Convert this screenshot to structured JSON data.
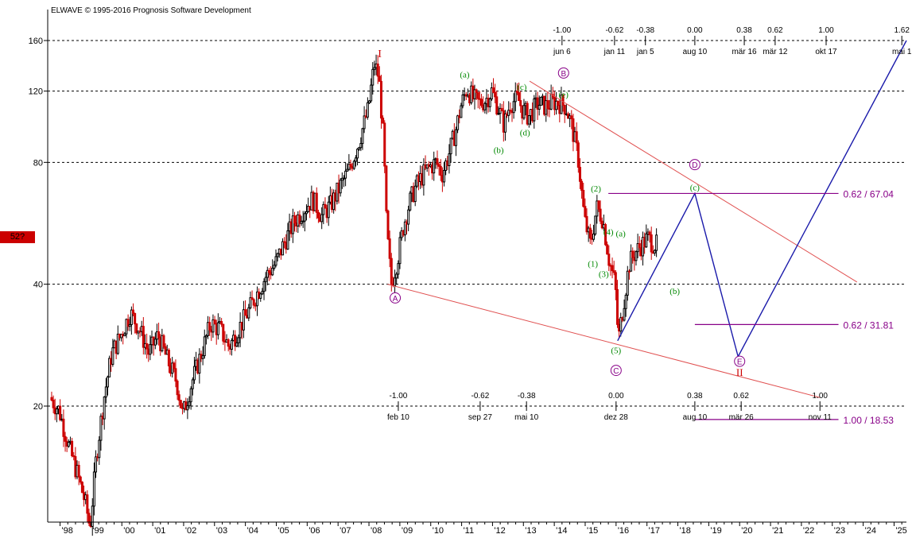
{
  "copyright": "ELWAVE © 1995-2016 Prognosis Software Development",
  "price_tag": "52?",
  "colors": {
    "bull": "#000000",
    "bear": "#cc0000",
    "projection": "#1a1aaa",
    "channel": "#e05050",
    "target": "#880088",
    "wave_green": "#008800",
    "wave_purple": "#880088",
    "wave_red": "#cc0000"
  },
  "chart_data": {
    "type": "candlestick",
    "y_scale": "log",
    "ylim": [
      8,
      175
    ],
    "xlim": [
      1997.6,
      2025.4
    ],
    "y_ticks": [
      20,
      40,
      80,
      120,
      160
    ],
    "x_ticks": [
      "'98",
      "'99",
      "'00",
      "'01",
      "'02",
      "'03",
      "'04",
      "'05",
      "'06",
      "'07",
      "'08",
      "'09",
      "'10",
      "'11",
      "'12",
      "'13",
      "'14",
      "'15",
      "'16",
      "'17",
      "'18",
      "'19",
      "'20",
      "'21",
      "'22",
      "'23",
      "'24",
      "'25"
    ],
    "x_tick_years": [
      1998,
      1999,
      2000,
      2001,
      2002,
      2003,
      2004,
      2005,
      2006,
      2007,
      2008,
      2009,
      2010,
      2011,
      2012,
      2013,
      2014,
      2015,
      2016,
      2017,
      2018,
      2019,
      2020,
      2021,
      2022,
      2023,
      2024,
      2025
    ],
    "anchors": [
      [
        1997.7,
        21
      ],
      [
        1998.0,
        19.5
      ],
      [
        1998.3,
        16
      ],
      [
        1998.6,
        13.5
      ],
      [
        1998.85,
        11.5
      ],
      [
        1999.0,
        10
      ],
      [
        1999.2,
        15
      ],
      [
        1999.45,
        21
      ],
      [
        1999.7,
        27
      ],
      [
        2000.0,
        30
      ],
      [
        2000.3,
        34
      ],
      [
        2000.6,
        31
      ],
      [
        2000.9,
        27
      ],
      [
        2001.2,
        30
      ],
      [
        2001.5,
        26
      ],
      [
        2001.8,
        23
      ],
      [
        2002.0,
        19
      ],
      [
        2002.3,
        23
      ],
      [
        2002.6,
        27
      ],
      [
        2002.9,
        32
      ],
      [
        2003.2,
        31
      ],
      [
        2003.5,
        28
      ],
      [
        2003.8,
        31
      ],
      [
        2004.1,
        34
      ],
      [
        2004.4,
        38
      ],
      [
        2004.7,
        42
      ],
      [
        2005.0,
        45
      ],
      [
        2005.3,
        51
      ],
      [
        2005.6,
        57
      ],
      [
        2005.9,
        61
      ],
      [
        2006.2,
        65
      ],
      [
        2006.5,
        59
      ],
      [
        2006.8,
        63
      ],
      [
        2007.1,
        70
      ],
      [
        2007.4,
        77
      ],
      [
        2007.7,
        90
      ],
      [
        2008.0,
        108
      ],
      [
        2008.2,
        140
      ],
      [
        2008.35,
        130
      ],
      [
        2008.5,
        90
      ],
      [
        2008.6,
        55
      ],
      [
        2008.75,
        40
      ],
      [
        2008.95,
        46
      ],
      [
        2009.15,
        56
      ],
      [
        2009.35,
        64
      ],
      [
        2009.55,
        70
      ],
      [
        2009.8,
        75
      ],
      [
        2010.0,
        78
      ],
      [
        2010.2,
        80
      ],
      [
        2010.4,
        75
      ],
      [
        2010.6,
        83
      ],
      [
        2010.85,
        97
      ],
      [
        2011.0,
        110
      ],
      [
        2011.2,
        122
      ],
      [
        2011.4,
        115
      ],
      [
        2011.6,
        112
      ],
      [
        2011.8,
        114
      ],
      [
        2012.0,
        120
      ],
      [
        2012.2,
        110
      ],
      [
        2012.4,
        99
      ],
      [
        2012.6,
        112
      ],
      [
        2012.85,
        115
      ],
      [
        2013.0,
        108
      ],
      [
        2013.2,
        104
      ],
      [
        2013.5,
        112
      ],
      [
        2013.75,
        110
      ],
      [
        2014.0,
        113
      ],
      [
        2014.25,
        112
      ],
      [
        2014.4,
        110
      ],
      [
        2014.6,
        98
      ],
      [
        2014.8,
        82
      ],
      [
        2015.0,
        58
      ],
      [
        2015.2,
        50
      ],
      [
        2015.4,
        62
      ],
      [
        2015.6,
        58
      ],
      [
        2015.8,
        46
      ],
      [
        2016.0,
        40
      ],
      [
        2016.1,
        29
      ],
      [
        2016.25,
        35
      ],
      [
        2016.45,
        45
      ],
      [
        2016.65,
        48
      ],
      [
        2016.85,
        50
      ],
      [
        2017.05,
        52
      ],
      [
        2017.3,
        50
      ]
    ],
    "wave_labels": [
      {
        "text": "I",
        "x": 2008.35,
        "y": 148,
        "color": "wave_red",
        "circle": false,
        "size": 14
      },
      {
        "text": "A",
        "x": 2008.85,
        "y": 37,
        "color": "wave_purple",
        "circle": true
      },
      {
        "text": "(a)",
        "x": 2011.1,
        "y": 132,
        "color": "wave_green",
        "circle": false
      },
      {
        "text": "(b)",
        "x": 2012.2,
        "y": 86,
        "color": "wave_green",
        "circle": false
      },
      {
        "text": "(c)",
        "x": 2012.95,
        "y": 123,
        "color": "wave_green",
        "circle": false
      },
      {
        "text": "(d)",
        "x": 2013.05,
        "y": 95,
        "color": "wave_green",
        "circle": false
      },
      {
        "text": "(e)",
        "x": 2014.3,
        "y": 118,
        "color": "wave_green",
        "circle": false
      },
      {
        "text": "B",
        "x": 2014.3,
        "y": 133,
        "color": "wave_purple",
        "circle": true
      },
      {
        "text": "(1)",
        "x": 2015.25,
        "y": 45,
        "color": "wave_green",
        "circle": false
      },
      {
        "text": "(2)",
        "x": 2015.35,
        "y": 69,
        "color": "wave_green",
        "circle": false
      },
      {
        "text": "(3)",
        "x": 2015.6,
        "y": 42.5,
        "color": "wave_green",
        "circle": false
      },
      {
        "text": "(4)",
        "x": 2015.75,
        "y": 54,
        "color": "wave_green",
        "circle": false
      },
      {
        "text": "(5)",
        "x": 2016.0,
        "y": 27.5,
        "color": "wave_green",
        "circle": false
      },
      {
        "text": "C",
        "x": 2016.0,
        "y": 24.5,
        "color": "wave_purple",
        "circle": true
      },
      {
        "text": "(a)",
        "x": 2016.15,
        "y": 53.5,
        "color": "wave_green",
        "circle": false
      },
      {
        "text": "(b)",
        "x": 2017.9,
        "y": 38.5,
        "color": "wave_green",
        "circle": false
      },
      {
        "text": "D",
        "x": 2018.55,
        "y": 79,
        "color": "wave_purple",
        "circle": true
      },
      {
        "text": "(c)",
        "x": 2018.55,
        "y": 69.5,
        "color": "wave_green",
        "circle": false
      },
      {
        "text": "E",
        "x": 2020.0,
        "y": 25.8,
        "color": "wave_purple",
        "circle": true
      },
      {
        "text": "II",
        "x": 2020.0,
        "y": 24.2,
        "color": "wave_red",
        "circle": false,
        "size": 13
      }
    ],
    "projection": [
      [
        2016.05,
        29
      ],
      [
        2018.55,
        67.04
      ],
      [
        2019.95,
        26.5
      ],
      [
        2025.4,
        160
      ]
    ],
    "channel_lines": [
      [
        [
          2008.6,
          40
        ],
        [
          2022.6,
          21
        ]
      ],
      [
        [
          2013.2,
          127
        ],
        [
          2023.8,
          40.5
        ]
      ]
    ],
    "target_lines": [
      {
        "label": "0.62 / 67.04",
        "from_x": 2015.75,
        "to_x": 2023.2,
        "y": 67.04
      },
      {
        "label": "0.62 / 31.81",
        "from_x": 2018.55,
        "to_x": 2023.2,
        "y": 31.81
      },
      {
        "label": "1.00 / 18.53",
        "from_x": 2018.55,
        "to_x": 2023.2,
        "y": 18.53
      }
    ],
    "top_fib_ruler": {
      "y": 160,
      "ticks": [
        {
          "ratio": "-1.00",
          "date": "jun 6",
          "x": 2014.25
        },
        {
          "ratio": "-0.62",
          "date": "jan 11",
          "x": 2015.95
        },
        {
          "ratio": "-0.38",
          "date": "jan 5",
          "x": 2016.95
        },
        {
          "ratio": "0.00",
          "date": "aug 10",
          "x": 2018.55
        },
        {
          "ratio": "0.38",
          "date": "mär 16",
          "x": 2020.15
        },
        {
          "ratio": "0.62",
          "date": "mär 12",
          "x": 2021.15
        },
        {
          "ratio": "1.00",
          "date": "okt 17",
          "x": 2022.8
        },
        {
          "ratio": "1.62",
          "date": "mai 1",
          "x": 2025.25
        }
      ]
    },
    "bottom_fib_ruler": {
      "y": 20,
      "ticks": [
        {
          "ratio": "-1.00",
          "date": "feb 10",
          "x": 2008.95
        },
        {
          "ratio": "-0.62",
          "date": "sep 27",
          "x": 2011.6
        },
        {
          "ratio": "-0.38",
          "date": "mai 10",
          "x": 2013.1
        },
        {
          "ratio": "0.00",
          "date": "dez 28",
          "x": 2016.0
        },
        {
          "ratio": "0.38",
          "date": "aug 10",
          "x": 2018.55
        },
        {
          "ratio": "0.62",
          "date": "mär 26",
          "x": 2020.05
        },
        {
          "ratio": "1.00",
          "date": "nov 11",
          "x": 2022.6
        }
      ]
    }
  }
}
